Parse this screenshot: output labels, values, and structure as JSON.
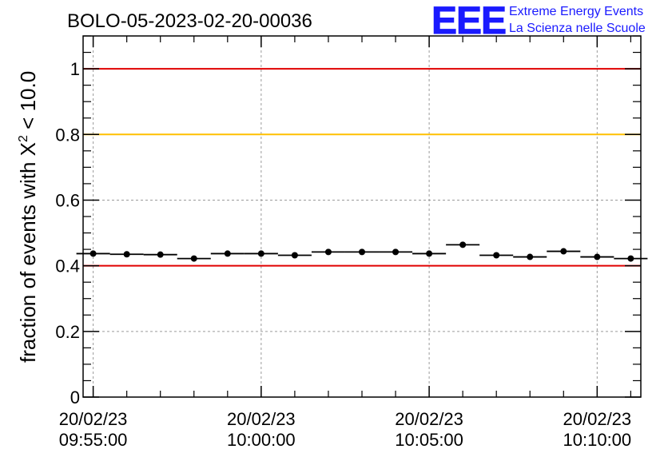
{
  "chart_data": {
    "type": "scatter",
    "title": "BOLO-05-2023-02-20-00036",
    "ylabel_main": "fraction of events with X",
    "ylabel_sup": "2",
    "ylabel_tail": " < 10.0",
    "xlabel": "",
    "ylim": [
      0,
      1.1
    ],
    "y_ticks": [
      "0",
      "0.2",
      "0.4",
      "0.6",
      "0.8",
      "1"
    ],
    "y_tick_values": [
      0,
      0.2,
      0.4,
      0.6,
      0.8,
      1.0
    ],
    "x_range_minutes": [
      -0.3,
      16.3
    ],
    "x_ticks": [
      {
        "date": "20/02/23",
        "time": "09:55:00",
        "minute": 0
      },
      {
        "date": "20/02/23",
        "time": "10:00:00",
        "minute": 5
      },
      {
        "date": "20/02/23",
        "time": "10:05:00",
        "minute": 10
      },
      {
        "date": "20/02/23",
        "time": "10:10:00",
        "minute": 15
      }
    ],
    "grid": true,
    "bin_width_minutes": 1,
    "x": [
      0,
      1,
      2,
      3,
      4,
      5,
      6,
      7,
      8,
      9,
      10,
      11,
      12,
      13,
      14,
      15,
      16
    ],
    "values": [
      0.437,
      0.435,
      0.434,
      0.422,
      0.437,
      0.437,
      0.432,
      0.442,
      0.442,
      0.442,
      0.437,
      0.464,
      0.432,
      0.427,
      0.444,
      0.427,
      0.422
    ],
    "reference_lines": [
      {
        "y": 1.0,
        "color": "#e00000"
      },
      {
        "y": 0.8,
        "color": "#ffc000"
      },
      {
        "y": 0.4,
        "color": "#e00000"
      }
    ]
  },
  "logo": {
    "mark": "EEE",
    "line1": "Extreme Energy Events",
    "line2": "La Scienza nelle Scuole",
    "color": "#1a1aff"
  }
}
